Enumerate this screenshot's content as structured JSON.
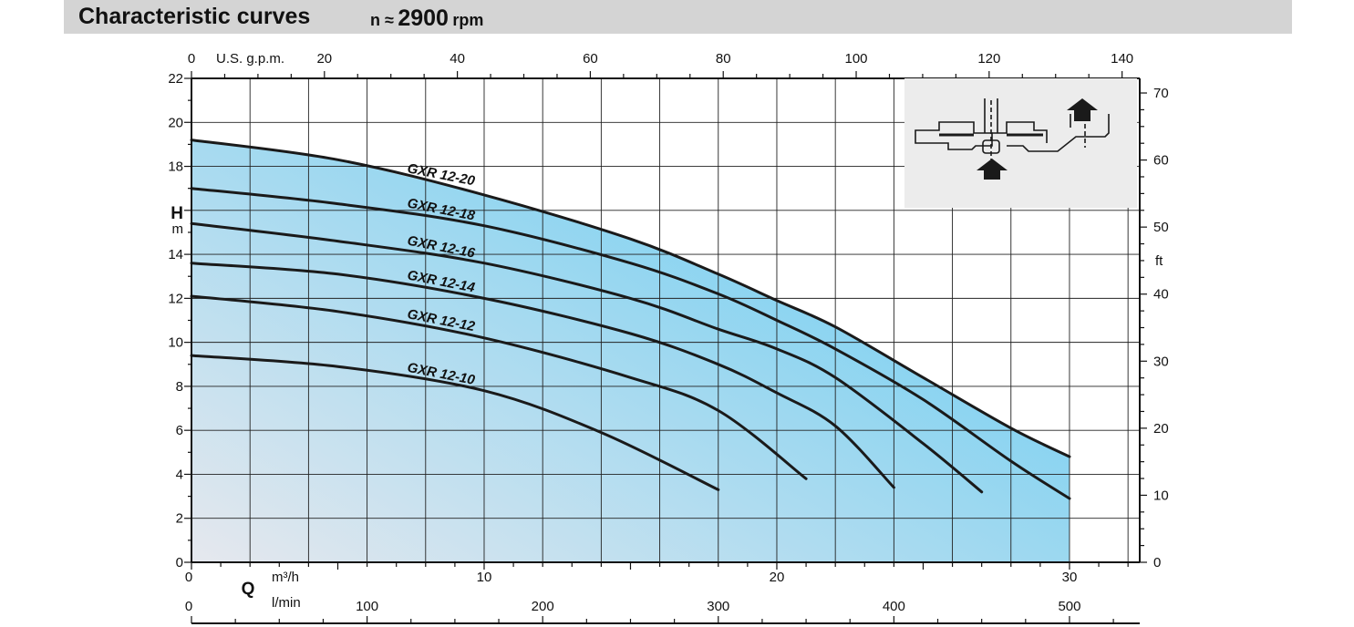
{
  "header": {
    "title": "Characteristic curves",
    "speed_prefix": "n ≈",
    "speed_value": "2900",
    "speed_unit": "rpm"
  },
  "colors": {
    "title_bar": "#d4d4d4",
    "fill_light": "#e6e8ee",
    "fill_dark": "#66ccf2",
    "curve": "#1a1a1a",
    "inset_bg": "#ececec"
  },
  "icons": [
    "pump-section-icon",
    "inlet-arrow-icon",
    "outlet-arrow-icon"
  ],
  "chart_data": {
    "type": "line",
    "grid": true,
    "axes": {
      "x_bottom": {
        "symbol": "Q",
        "unit_top": "m³/h",
        "unit_bottom": "l/min",
        "range_m3h": [
          0,
          32.4
        ],
        "ticks_m3h": [
          "0",
          "10",
          "20",
          "30"
        ],
        "ticks_lmin": [
          "0",
          "100",
          "200",
          "300",
          "400",
          "500"
        ]
      },
      "x_top": {
        "unit": "U.S. g.p.m.",
        "ticks": [
          "0",
          "20",
          "40",
          "60",
          "80",
          "100",
          "120",
          "140"
        ]
      },
      "y_left": {
        "symbol": "H",
        "unit": "m",
        "range": [
          0,
          22
        ],
        "ticks": [
          "0",
          "2",
          "4",
          "6",
          "8",
          "10",
          "12",
          "14",
          "18",
          "20",
          "22"
        ]
      },
      "y_right": {
        "unit": "ft",
        "ticks": [
          "0",
          "10",
          "20",
          "30",
          "40",
          "50",
          "60",
          "70"
        ]
      }
    },
    "series": [
      {
        "name": "GXR 12-20",
        "x": [
          0,
          5,
          10,
          15,
          18,
          20,
          22,
          25,
          28,
          30
        ],
        "y": [
          19.2,
          18.3,
          16.7,
          14.7,
          13.1,
          11.9,
          10.7,
          8.4,
          6.1,
          4.8
        ]
      },
      {
        "name": "GXR 12-18",
        "x": [
          0,
          5,
          10,
          15,
          18,
          20,
          22,
          25,
          28,
          30
        ],
        "y": [
          17.0,
          16.3,
          15.3,
          13.6,
          12.2,
          11.0,
          9.7,
          7.4,
          4.6,
          2.9
        ]
      },
      {
        "name": "GXR 12-16",
        "x": [
          0,
          5,
          10,
          15,
          18,
          20,
          22,
          25,
          27
        ],
        "y": [
          15.4,
          14.6,
          13.6,
          12.0,
          10.6,
          9.7,
          8.4,
          5.4,
          3.2
        ]
      },
      {
        "name": "GXR 12-14",
        "x": [
          0,
          5,
          10,
          15,
          18,
          20,
          22,
          24
        ],
        "y": [
          13.6,
          13.1,
          12.0,
          10.4,
          9.0,
          7.7,
          6.2,
          3.4
        ]
      },
      {
        "name": "GXR 12-12",
        "x": [
          0,
          5,
          10,
          15,
          18,
          21
        ],
        "y": [
          12.1,
          11.4,
          10.2,
          8.4,
          6.9,
          3.8
        ]
      },
      {
        "name": "GXR 12-10",
        "x": [
          0,
          5,
          10,
          14,
          18
        ],
        "y": [
          9.4,
          8.9,
          7.8,
          5.9,
          3.3
        ]
      }
    ]
  }
}
